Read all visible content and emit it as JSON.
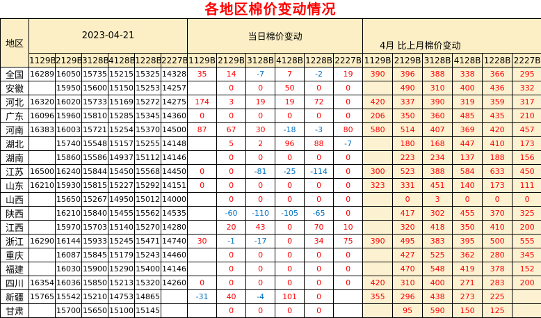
{
  "title": "各地区棉价变动情况",
  "colors": {
    "title_red": "#ff0000",
    "positive_red": "#ff0000",
    "negative_blue": "#0070c0",
    "header_bg": "#fcefc6",
    "monthly_section_bg": "#fcf2d2",
    "border": "#000000"
  },
  "header": {
    "region": "地区",
    "date_section": "2023-04-21",
    "daily_section": "当日棉价变动",
    "monthly_section": "4月 比上月棉价变动"
  },
  "grades": [
    "1129B",
    "2129B",
    "3128B",
    "4128B",
    "1228B",
    "2227B"
  ],
  "regions": [
    {
      "name": "全国",
      "prices": [
        16289,
        16050,
        15735,
        15215,
        15325,
        14328
      ],
      "daily": [
        35,
        14,
        -7,
        7,
        -2,
        19
      ],
      "monthly": [
        390,
        396,
        388,
        338,
        366,
        295
      ]
    },
    {
      "name": "安徽",
      "prices": [
        "",
        15950,
        15600,
        15150,
        15253,
        14257
      ],
      "daily": [
        "",
        0,
        0,
        50,
        0,
        0
      ],
      "monthly": [
        "",
        490,
        310,
        400,
        436,
        332
      ]
    },
    {
      "name": "河北",
      "prices": [
        16320,
        16020,
        15733,
        15169,
        15272,
        14275
      ],
      "daily": [
        174,
        3,
        19,
        19,
        72,
        0
      ],
      "monthly": [
        420,
        337,
        390,
        319,
        359,
        317
      ]
    },
    {
      "name": "广东",
      "prices": [
        16096,
        15960,
        15810,
        15285,
        15345,
        14360
      ],
      "daily": [
        0,
        0,
        0,
        0,
        0,
        0
      ],
      "monthly": [
        206,
        350,
        360,
        485,
        435,
        210
      ]
    },
    {
      "name": "河南",
      "prices": [
        16383,
        16003,
        15721,
        15254,
        15370,
        14500
      ],
      "daily": [
        87,
        67,
        30,
        -18,
        -3,
        80
      ],
      "monthly": [
        580,
        514,
        407,
        369,
        420,
        457
      ]
    },
    {
      "name": "湖北",
      "prices": [
        "",
        15740,
        15548,
        15157,
        15255,
        14148
      ],
      "daily": [
        "",
        5,
        2,
        96,
        88,
        -7
      ],
      "monthly": [
        "",
        180,
        168,
        447,
        410,
        173
      ]
    },
    {
      "name": "湖南",
      "prices": [
        "",
        15860,
        15586,
        14937,
        15112,
        14146
      ],
      "daily": [
        "",
        0,
        0,
        0,
        0,
        0
      ],
      "monthly": [
        "",
        223,
        234,
        137,
        188,
        156
      ]
    },
    {
      "name": "江苏",
      "prices": [
        16500,
        16240,
        15844,
        15450,
        15568,
        14450
      ],
      "daily": [
        0,
        0,
        -81,
        -25,
        -114,
        0
      ],
      "monthly": [
        300,
        523,
        388,
        584,
        633,
        450
      ]
    },
    {
      "name": "山东",
      "prices": [
        16210,
        15930,
        15815,
        15227,
        15292,
        14151
      ],
      "daily": [
        0,
        0,
        0,
        0,
        0,
        0
      ],
      "monthly": [
        323,
        331,
        451,
        140,
        173,
        111
      ]
    },
    {
      "name": "山西",
      "prices": [
        "",
        15650,
        15267,
        14950,
        15012,
        14000
      ],
      "daily": [
        "",
        0,
        0,
        0,
        0,
        0
      ],
      "monthly": [
        "",
        0,
        3,
        0,
        0,
        0
      ]
    },
    {
      "name": "陕西",
      "prices": [
        "",
        16210,
        15840,
        15455,
        15562,
        14535
      ],
      "daily": [
        "",
        -60,
        -110,
        -105,
        -65,
        0
      ],
      "monthly": [
        "",
        417,
        302,
        455,
        370,
        325
      ]
    },
    {
      "name": "江西",
      "prices": [
        "",
        15970,
        15703,
        15140,
        15270,
        14280
      ],
      "daily": [
        "",
        20,
        43,
        0,
        70,
        10
      ],
      "monthly": [
        "",
        320,
        418,
        350,
        410,
        200
      ]
    },
    {
      "name": "浙江",
      "prices": [
        16290,
        16144,
        15933,
        15245,
        15471,
        14740
      ],
      "daily": [
        30,
        -1,
        -17,
        0,
        34,
        75
      ],
      "monthly": [
        390,
        495,
        383,
        395,
        500,
        555
      ]
    },
    {
      "name": "重庆",
      "prices": [
        "",
        16087,
        15845,
        15179,
        15243,
        14460
      ],
      "daily": [
        "",
        0,
        0,
        0,
        0,
        0
      ],
      "monthly": [
        "",
        427,
        525,
        362,
        280,
        345
      ]
    },
    {
      "name": "福建",
      "prices": [
        "",
        16030,
        15900,
        15290,
        15400,
        14146
      ],
      "daily": [
        "",
        0,
        0,
        0,
        0,
        0
      ],
      "monthly": [
        "",
        470,
        548,
        419,
        378,
        152
      ]
    },
    {
      "name": "四川",
      "prices": [
        16354,
        16036,
        15850,
        15213,
        15320,
        14260
      ],
      "daily": [
        0,
        0,
        0,
        0,
        0,
        0
      ],
      "monthly": [
        420,
        310,
        400,
        271,
        283,
        200
      ]
    },
    {
      "name": "新疆",
      "prices": [
        15765,
        15542,
        15210,
        14753,
        14865,
        ""
      ],
      "daily": [
        -31,
        40,
        -4,
        101,
        0,
        ""
      ],
      "monthly": [
        355,
        296,
        438,
        273,
        225,
        ""
      ]
    },
    {
      "name": "甘肃",
      "prices": [
        "",
        15700,
        15650,
        15100,
        15145,
        ""
      ],
      "daily": [
        "",
        0,
        0,
        0,
        0,
        ""
      ],
      "monthly": [
        "",
        95,
        590,
        150,
        125,
        ""
      ]
    }
  ]
}
